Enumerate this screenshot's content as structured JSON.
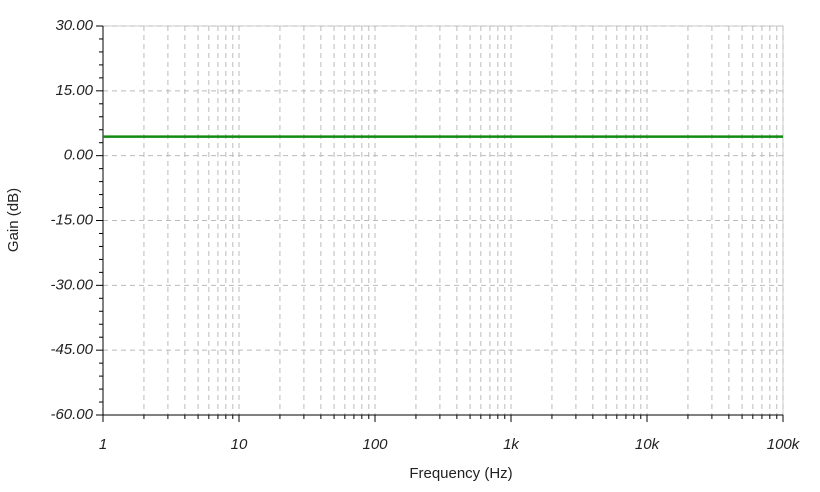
{
  "chart_data": {
    "type": "line",
    "x_label": "Frequency (Hz)",
    "y_label": "Gain (dB)",
    "x": [
      1,
      100000
    ],
    "series": [
      {
        "name": "Gain",
        "color": "#138a13",
        "values": [
          4.4,
          4.4
        ]
      }
    ],
    "xscale": "log",
    "xlim": [
      1,
      100000
    ],
    "xticks": [
      1,
      10,
      100,
      {
        "value": 1000,
        "label": "1k"
      },
      {
        "value": 10000,
        "label": "10k"
      },
      {
        "value": 100000,
        "label": "100k"
      }
    ],
    "ylim": [
      -60,
      30
    ],
    "yticks": [
      {
        "value": -60,
        "label": "-60.00"
      },
      {
        "value": -45,
        "label": "-45.00"
      },
      {
        "value": -30,
        "label": "-30.00"
      },
      {
        "value": -15,
        "label": "-15.00"
      },
      {
        "value": 0,
        "label": "0.00"
      },
      {
        "value": 15,
        "label": "15.00"
      },
      {
        "value": 30,
        "label": "30.00"
      }
    ],
    "grid": true
  }
}
